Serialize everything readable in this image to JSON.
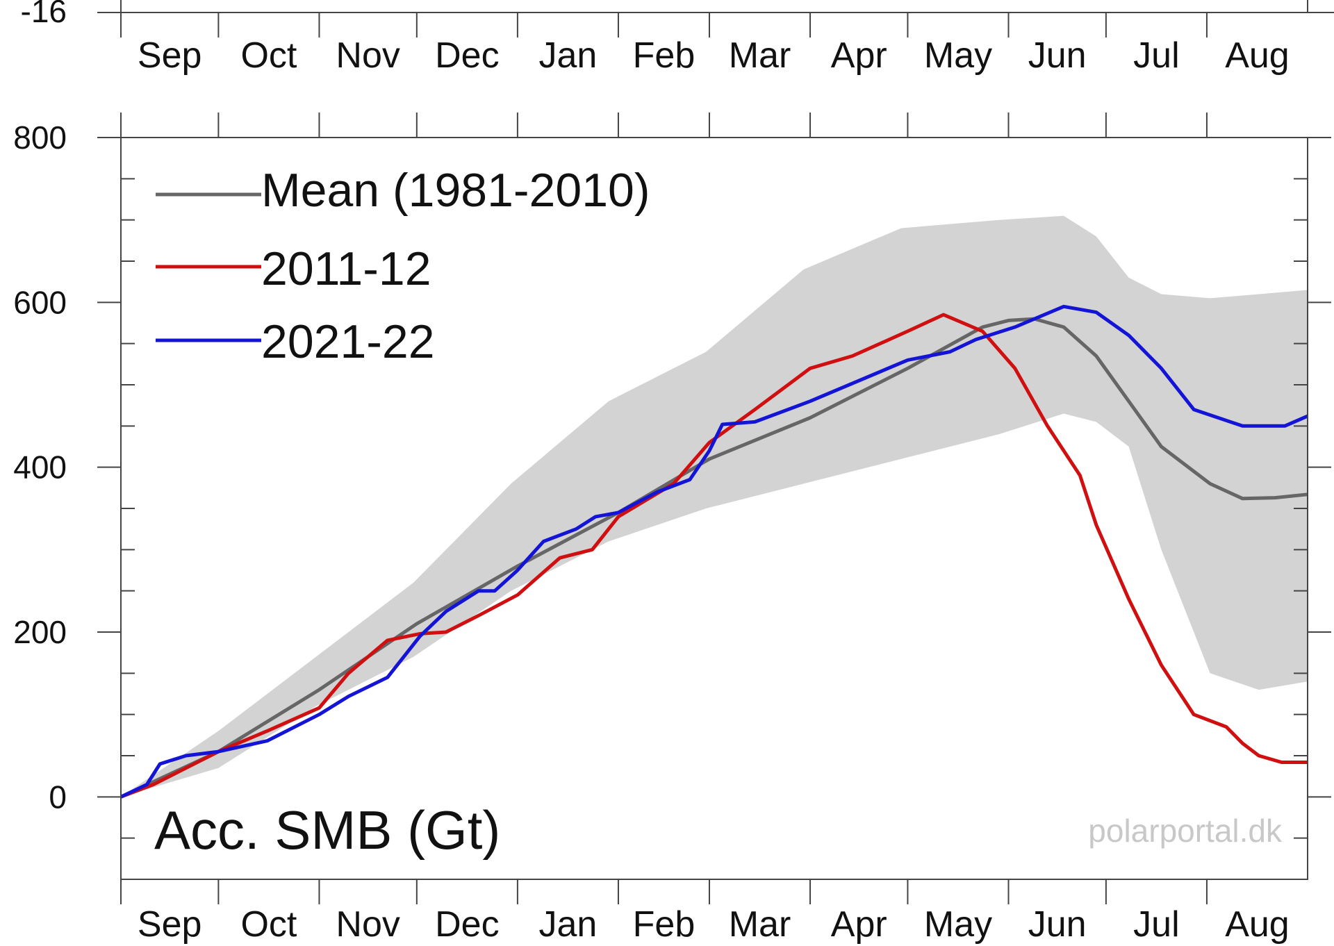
{
  "chart_data": {
    "type": "line",
    "ylabel": "Acc. SMB (Gt)",
    "watermark": "polarportal.dk",
    "top_panel": {
      "ytick_labels": [
        "-16"
      ],
      "x_tick_labels": [
        "Sep",
        "Oct",
        "Nov",
        "Dec",
        "Jan",
        "Feb",
        "Mar",
        "Apr",
        "May",
        "Jun",
        "Jul",
        "Aug"
      ]
    },
    "x_tick_labels": [
      "Sep",
      "Oct",
      "Nov",
      "Dec",
      "Jan",
      "Feb",
      "Mar",
      "Apr",
      "May",
      "Jun",
      "Jul",
      "Aug"
    ],
    "xlim": [
      0,
      365
    ],
    "ylim": [
      -100,
      800
    ],
    "yticks": [
      0,
      200,
      400,
      600,
      800
    ],
    "ytick_labels": [
      "0",
      "200",
      "400",
      "600",
      "800"
    ],
    "band": {
      "name": "min-max range (1981-2010)",
      "x": [
        0,
        30,
        60,
        90,
        120,
        150,
        180,
        210,
        240,
        270,
        290,
        300,
        310,
        320,
        335,
        350,
        365
      ],
      "upper": [
        0,
        80,
        170,
        260,
        380,
        480,
        540,
        640,
        690,
        700,
        705,
        680,
        630,
        610,
        605,
        610,
        615
      ],
      "lower": [
        0,
        35,
        110,
        170,
        250,
        310,
        350,
        380,
        410,
        440,
        465,
        455,
        425,
        300,
        150,
        130,
        140
      ]
    },
    "series": [
      {
        "name": "Mean (1981-2010)",
        "color": "#666666",
        "x": [
          0,
          30,
          61,
          91,
          122,
          153,
          181,
          212,
          242,
          265,
          273,
          281,
          290,
          300,
          310,
          320,
          335,
          345,
          355,
          365
        ],
        "values": [
          0,
          55,
          130,
          210,
          280,
          345,
          410,
          460,
          520,
          570,
          578,
          580,
          570,
          535,
          480,
          425,
          380,
          362,
          363,
          367
        ]
      },
      {
        "name": "2011-12",
        "color": "#d01010",
        "x": [
          0,
          10,
          20,
          30,
          45,
          61,
          70,
          82,
          92,
          100,
          110,
          122,
          135,
          145,
          153,
          170,
          181,
          195,
          212,
          225,
          242,
          253,
          265,
          275,
          285,
          295,
          300,
          310,
          320,
          330,
          340,
          345,
          350,
          357,
          365
        ],
        "values": [
          0,
          15,
          35,
          55,
          80,
          108,
          150,
          190,
          198,
          200,
          220,
          245,
          290,
          300,
          340,
          380,
          430,
          470,
          520,
          535,
          565,
          585,
          565,
          520,
          450,
          390,
          330,
          240,
          160,
          100,
          85,
          65,
          50,
          42,
          42
        ]
      },
      {
        "name": "2021-22",
        "color": "#1414d6",
        "x": [
          0,
          8,
          12,
          20,
          30,
          45,
          61,
          70,
          82,
          92,
          100,
          110,
          115,
          122,
          130,
          140,
          146,
          153,
          165,
          175,
          181,
          185,
          195,
          212,
          242,
          255,
          263,
          275,
          290,
          300,
          310,
          320,
          330,
          345,
          358,
          365
        ],
        "values": [
          0,
          15,
          40,
          50,
          55,
          68,
          100,
          122,
          145,
          195,
          225,
          250,
          250,
          275,
          310,
          325,
          340,
          345,
          370,
          385,
          420,
          452,
          455,
          480,
          530,
          540,
          555,
          570,
          595,
          588,
          560,
          520,
          470,
          450,
          450,
          462
        ]
      }
    ]
  }
}
